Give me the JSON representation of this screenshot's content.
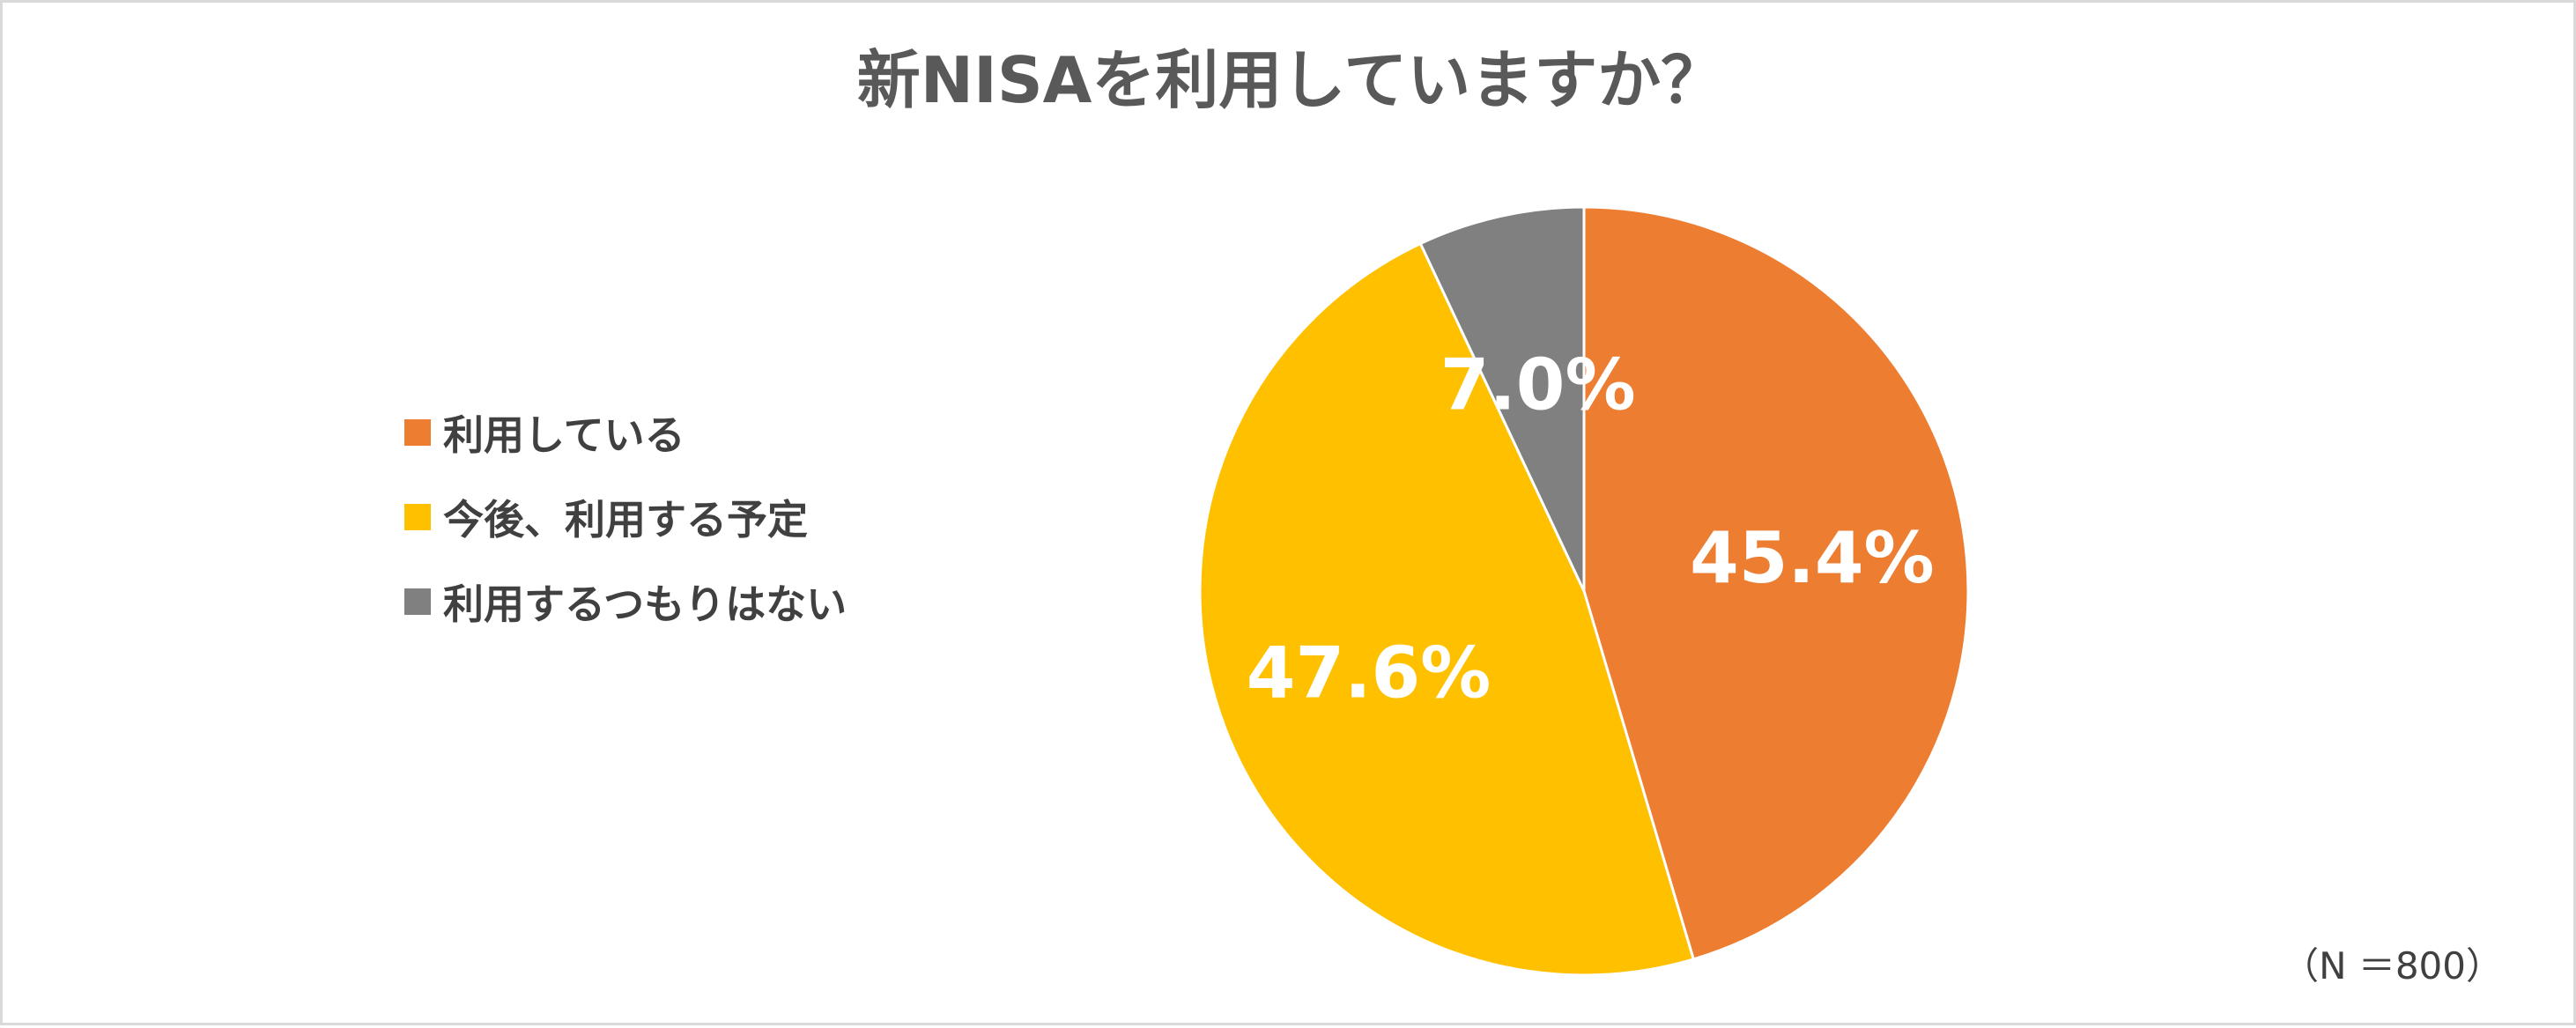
{
  "chart_data": {
    "type": "pie",
    "title": "新NISAを利用していますか？",
    "categories": [
      "利用している",
      "今後、利用する予定",
      "利用するつもりはない"
    ],
    "values": [
      45.4,
      47.6,
      7.0
    ],
    "data_labels": [
      "45.4%",
      "47.6%",
      "7.0%"
    ],
    "colors": [
      "#ED7D31",
      "#FFC000",
      "#808080"
    ],
    "start_angle_deg": 0,
    "direction": "clockwise",
    "legend_position": "left",
    "note": "（N ＝800）"
  }
}
